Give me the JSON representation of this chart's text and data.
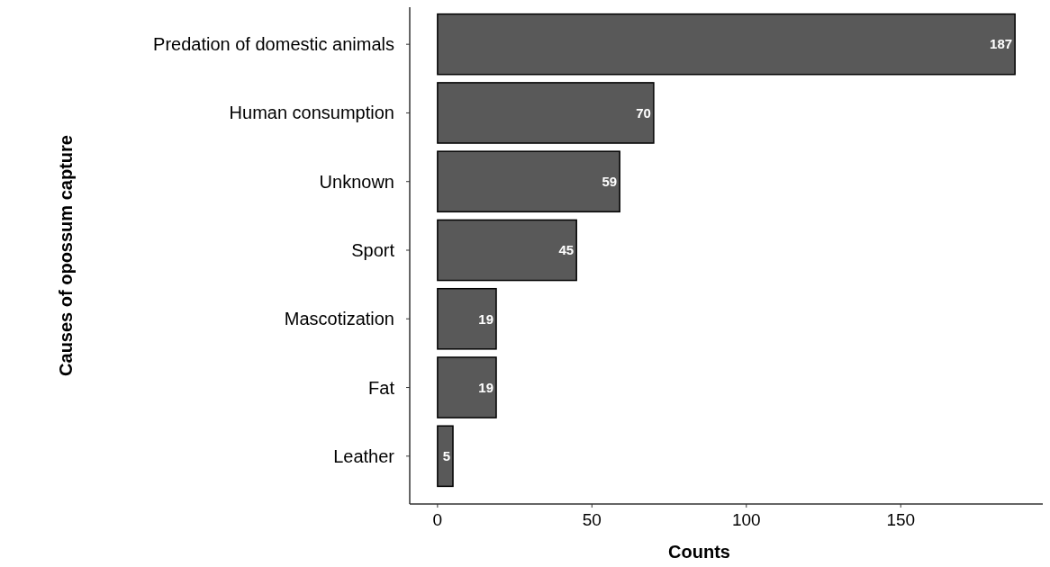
{
  "chart_data": {
    "type": "bar",
    "orientation": "horizontal",
    "xlabel": "Counts",
    "ylabel": "Causes of opossum capture",
    "categories": [
      "Predation of domestic animals",
      "Human consumption",
      "Unknown",
      "Sport",
      "Mascotization",
      "Fat",
      "Leather"
    ],
    "values": [
      187,
      70,
      59,
      45,
      19,
      19,
      5
    ],
    "color": "#595959",
    "xlim": [
      -9,
      196
    ],
    "xticks": [
      0,
      50,
      100,
      150
    ],
    "data_labels": true,
    "grid": false
  }
}
